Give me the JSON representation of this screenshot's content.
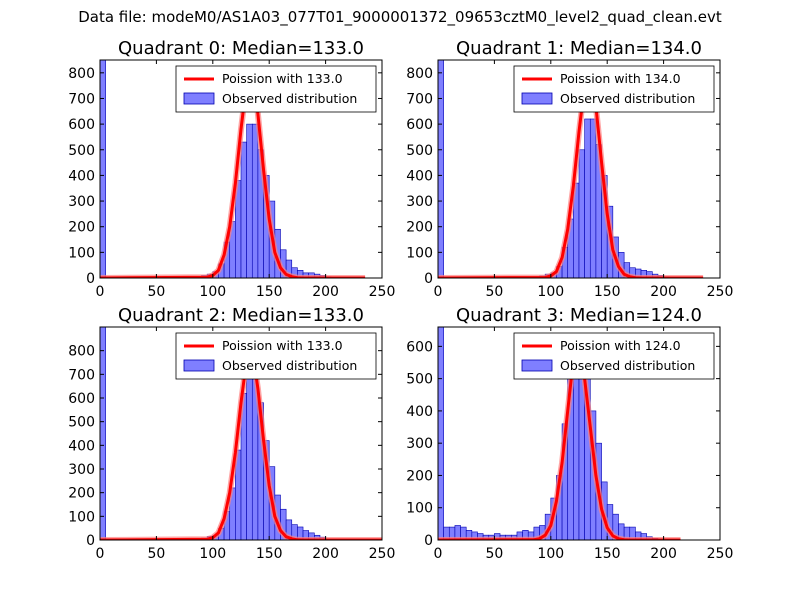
{
  "figure": {
    "suptitle": "Data file: modeM0/AS1A03_077T01_9000001372_09653cztM0_level2_quad_clean.evt"
  },
  "colors": {
    "bar_fill": "#7f7fff",
    "bar_edge": "#0000b0",
    "curve": "#ff0000",
    "curve_halo": "#ff8080"
  },
  "chart_data": [
    {
      "type": "bar",
      "title": "Quadrant 0: Median=133.0",
      "median": 133.0,
      "xlim": [
        0,
        250
      ],
      "ylim": [
        0,
        850
      ],
      "xticks": [
        0,
        50,
        100,
        150,
        200,
        250
      ],
      "yticks": [
        0,
        100,
        200,
        300,
        400,
        500,
        600,
        700,
        800
      ],
      "legend": {
        "position": "upper-right",
        "entries": [
          "Poission with 133.0",
          "Observed distribution"
        ]
      },
      "bin_width": 5,
      "bins": [
        [
          0,
          850
        ],
        [
          75,
          2
        ],
        [
          85,
          5
        ],
        [
          90,
          10
        ],
        [
          95,
          15
        ],
        [
          100,
          25
        ],
        [
          105,
          55
        ],
        [
          110,
          140
        ],
        [
          115,
          220
        ],
        [
          120,
          380
        ],
        [
          125,
          530
        ],
        [
          130,
          600
        ],
        [
          135,
          600
        ],
        [
          140,
          500
        ],
        [
          145,
          400
        ],
        [
          150,
          300
        ],
        [
          155,
          190
        ],
        [
          160,
          110
        ],
        [
          165,
          70
        ],
        [
          170,
          40
        ],
        [
          175,
          30
        ],
        [
          180,
          20
        ],
        [
          185,
          20
        ],
        [
          190,
          15
        ],
        [
          195,
          10
        ],
        [
          200,
          5
        ]
      ],
      "fit_x": [
        0,
        95,
        100,
        105,
        110,
        115,
        120,
        125,
        130,
        133,
        136,
        140,
        145,
        150,
        155,
        160,
        165,
        170,
        175,
        180,
        235
      ],
      "fit_y": [
        0,
        3,
        10,
        30,
        90,
        200,
        370,
        580,
        760,
        800,
        770,
        640,
        420,
        230,
        100,
        40,
        14,
        5,
        1,
        0,
        0
      ]
    },
    {
      "type": "bar",
      "title": "Quadrant 1: Median=134.0",
      "median": 134.0,
      "xlim": [
        0,
        250
      ],
      "ylim": [
        0,
        850
      ],
      "xticks": [
        0,
        50,
        100,
        150,
        200,
        250
      ],
      "yticks": [
        0,
        100,
        200,
        300,
        400,
        500,
        600,
        700,
        800
      ],
      "legend": {
        "position": "upper-right",
        "entries": [
          "Poission with 134.0",
          "Observed distribution"
        ]
      },
      "bin_width": 5,
      "bins": [
        [
          0,
          850
        ],
        [
          80,
          2
        ],
        [
          85,
          5
        ],
        [
          90,
          8
        ],
        [
          95,
          15
        ],
        [
          100,
          20
        ],
        [
          105,
          45
        ],
        [
          110,
          120
        ],
        [
          115,
          230
        ],
        [
          120,
          370
        ],
        [
          125,
          500
        ],
        [
          130,
          620
        ],
        [
          135,
          620
        ],
        [
          140,
          520
        ],
        [
          145,
          400
        ],
        [
          150,
          280
        ],
        [
          155,
          160
        ],
        [
          160,
          100
        ],
        [
          165,
          60
        ],
        [
          170,
          40
        ],
        [
          175,
          35
        ],
        [
          180,
          30
        ],
        [
          185,
          25
        ],
        [
          190,
          15
        ],
        [
          195,
          10
        ],
        [
          200,
          5
        ]
      ],
      "fit_x": [
        0,
        95,
        100,
        105,
        110,
        115,
        120,
        125,
        130,
        134,
        137,
        140,
        145,
        150,
        155,
        160,
        165,
        170,
        175,
        180,
        235
      ],
      "fit_y": [
        0,
        2,
        8,
        25,
        80,
        190,
        360,
        570,
        750,
        810,
        780,
        670,
        450,
        250,
        110,
        45,
        15,
        5,
        1,
        0,
        0
      ]
    },
    {
      "type": "bar",
      "title": "Quadrant 2: Median=133.0",
      "median": 133.0,
      "xlim": [
        0,
        250
      ],
      "ylim": [
        0,
        900
      ],
      "xticks": [
        0,
        50,
        100,
        150,
        200,
        250
      ],
      "yticks": [
        0,
        100,
        200,
        300,
        400,
        500,
        600,
        700,
        800
      ],
      "legend": {
        "position": "upper-right",
        "entries": [
          "Poission with 133.0",
          "Observed distribution"
        ]
      },
      "bin_width": 5,
      "bins": [
        [
          0,
          900
        ],
        [
          70,
          3
        ],
        [
          80,
          3
        ],
        [
          90,
          8
        ],
        [
          95,
          15
        ],
        [
          100,
          20
        ],
        [
          105,
          50
        ],
        [
          110,
          120
        ],
        [
          115,
          220
        ],
        [
          120,
          380
        ],
        [
          125,
          620
        ],
        [
          130,
          700
        ],
        [
          135,
          680
        ],
        [
          140,
          580
        ],
        [
          145,
          420
        ],
        [
          150,
          310
        ],
        [
          155,
          190
        ],
        [
          160,
          130
        ],
        [
          165,
          85
        ],
        [
          170,
          65
        ],
        [
          175,
          55
        ],
        [
          180,
          40
        ],
        [
          185,
          30
        ],
        [
          190,
          20
        ],
        [
          195,
          12
        ],
        [
          200,
          5
        ]
      ],
      "fit_x": [
        0,
        95,
        100,
        105,
        110,
        115,
        120,
        125,
        130,
        133,
        136,
        140,
        145,
        150,
        155,
        160,
        165,
        170,
        175,
        180,
        250
      ],
      "fit_y": [
        0,
        3,
        10,
        30,
        90,
        200,
        370,
        580,
        760,
        800,
        770,
        640,
        420,
        230,
        100,
        40,
        14,
        5,
        1,
        0,
        0
      ]
    },
    {
      "type": "bar",
      "title": "Quadrant 3: Median=124.0",
      "median": 124.0,
      "xlim": [
        0,
        250
      ],
      "ylim": [
        0,
        660
      ],
      "xticks": [
        0,
        50,
        100,
        150,
        200,
        250
      ],
      "yticks": [
        0,
        100,
        200,
        300,
        400,
        500,
        600
      ],
      "legend": {
        "position": "upper-right",
        "entries": [
          "Poission with 124.0",
          "Observed distribution"
        ]
      },
      "bin_width": 5,
      "bins": [
        [
          0,
          660
        ],
        [
          5,
          40
        ],
        [
          10,
          40
        ],
        [
          15,
          45
        ],
        [
          20,
          40
        ],
        [
          25,
          30
        ],
        [
          30,
          25
        ],
        [
          35,
          20
        ],
        [
          40,
          15
        ],
        [
          45,
          15
        ],
        [
          50,
          20
        ],
        [
          55,
          15
        ],
        [
          60,
          15
        ],
        [
          65,
          15
        ],
        [
          70,
          25
        ],
        [
          75,
          30
        ],
        [
          80,
          25
        ],
        [
          85,
          40
        ],
        [
          90,
          45
        ],
        [
          95,
          80
        ],
        [
          100,
          130
        ],
        [
          105,
          200
        ],
        [
          110,
          360
        ],
        [
          115,
          500
        ],
        [
          120,
          580
        ],
        [
          125,
          600
        ],
        [
          130,
          500
        ],
        [
          135,
          400
        ],
        [
          140,
          300
        ],
        [
          145,
          180
        ],
        [
          150,
          110
        ],
        [
          155,
          80
        ],
        [
          160,
          50
        ],
        [
          165,
          40
        ],
        [
          170,
          40
        ],
        [
          175,
          25
        ],
        [
          180,
          20
        ],
        [
          185,
          10
        ],
        [
          190,
          5
        ]
      ],
      "fit_x": [
        0,
        85,
        90,
        95,
        100,
        105,
        110,
        115,
        120,
        124,
        128,
        130,
        135,
        140,
        145,
        150,
        155,
        160,
        165,
        170,
        215
      ],
      "fit_y": [
        0,
        1,
        4,
        15,
        45,
        120,
        240,
        400,
        560,
        630,
        560,
        500,
        350,
        200,
        95,
        38,
        13,
        4,
        1,
        0,
        0
      ]
    }
  ]
}
